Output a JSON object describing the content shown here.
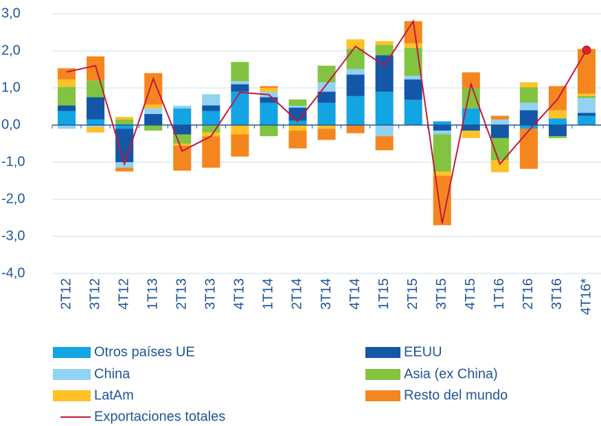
{
  "chart_data": {
    "type": "bar",
    "stacked": true,
    "categories": [
      "2T12",
      "3T12",
      "4T12",
      "1T13",
      "2T13",
      "3T13",
      "4T13",
      "1T14",
      "2T14",
      "3T14",
      "4T14",
      "1T15",
      "2T15",
      "3T15",
      "4T15",
      "1T16",
      "2T16",
      "3T16",
      "4T16*"
    ],
    "series": [
      {
        "name": "Otros países UE",
        "color": "#13a4e3",
        "values": [
          0.38,
          0.15,
          -0.1,
          0,
          0.45,
          0.38,
          0.9,
          0.6,
          0.12,
          0.6,
          0.78,
          0.9,
          0.68,
          0.1,
          0.45,
          0,
          -0.1,
          0.18,
          0.25
        ]
      },
      {
        "name": "EEUU",
        "color": "#1357a6",
        "values": [
          0.15,
          0.6,
          -0.9,
          0.3,
          -0.25,
          0.15,
          0.2,
          0.15,
          0.35,
          0.3,
          0.58,
          0.98,
          0.55,
          -0.15,
          -0.15,
          -0.35,
          0.4,
          -0.3,
          0.08
        ]
      },
      {
        "name": "China",
        "color": "#92d2f3",
        "values": [
          -0.1,
          -0.05,
          -0.15,
          0.15,
          0.07,
          0.3,
          0.08,
          0.15,
          0.05,
          0.25,
          0.15,
          -0.3,
          0.1,
          -0.1,
          0,
          0.15,
          0.2,
          0,
          0.4
        ]
      },
      {
        "name": "Asia (ex China)",
        "color": "#82c341",
        "values": [
          0.5,
          0.45,
          0.15,
          -0.15,
          -0.25,
          -0.2,
          0.52,
          -0.3,
          0.17,
          0.45,
          0.55,
          0.28,
          0.75,
          -1.0,
          0.55,
          -0.6,
          0.42,
          -0.05,
          0.05
        ]
      },
      {
        "name": "LatAm",
        "color": "#ffc125",
        "values": [
          0.2,
          -0.15,
          0.07,
          0.1,
          -0.05,
          -0.1,
          -0.25,
          0.1,
          -0.15,
          -0.1,
          0.25,
          0.1,
          0.12,
          -0.12,
          -0.2,
          -0.32,
          0.13,
          0.22,
          0.07
        ]
      },
      {
        "name": "Resto del mundo",
        "color": "#f5861f",
        "values": [
          0.3,
          0.65,
          -0.1,
          0.85,
          -0.68,
          -0.85,
          -0.6,
          0.05,
          -0.48,
          -0.3,
          -0.22,
          -0.38,
          0.6,
          -1.33,
          0.42,
          0.1,
          -1.08,
          0.65,
          1.2
        ]
      }
    ],
    "line": {
      "name": "Exportaciones totales",
      "color": "#c3173f",
      "values": [
        1.43,
        1.6,
        -1.05,
        1.25,
        -0.7,
        -0.3,
        0.88,
        0.82,
        0.1,
        1.1,
        2.12,
        1.6,
        2.8,
        -2.65,
        1.1,
        -1.05,
        -0.15,
        0.7,
        2.02
      ]
    },
    "ylim": [
      -4,
      3
    ],
    "yticks": [
      {
        "value": -4,
        "label": "-4,0"
      },
      {
        "value": -3,
        "label": "-3,0"
      },
      {
        "value": -2,
        "label": "-2,0"
      },
      {
        "value": -1,
        "label": "-1,0"
      },
      {
        "value": 0,
        "label": "0,0"
      },
      {
        "value": 1,
        "label": "1,0"
      },
      {
        "value": 2,
        "label": "2,0"
      },
      {
        "value": 3,
        "label": "3,0"
      }
    ],
    "grid": true
  }
}
